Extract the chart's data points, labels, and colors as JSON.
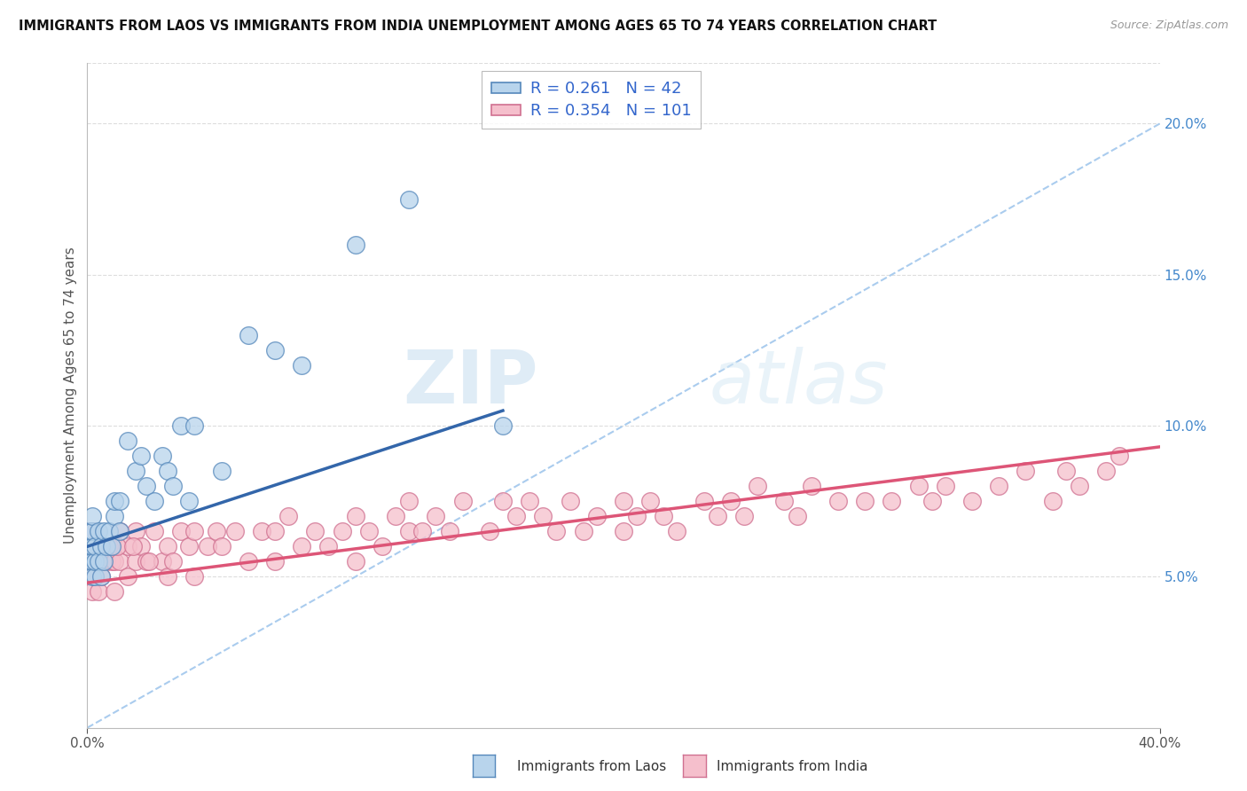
{
  "title": "IMMIGRANTS FROM LAOS VS IMMIGRANTS FROM INDIA UNEMPLOYMENT AMONG AGES 65 TO 74 YEARS CORRELATION CHART",
  "source": "Source: ZipAtlas.com",
  "ylabel": "Unemployment Among Ages 65 to 74 years",
  "xlim": [
    0.0,
    0.4
  ],
  "ylim": [
    0.0,
    0.22
  ],
  "xticks": [
    0.0,
    0.1,
    0.2,
    0.3,
    0.4
  ],
  "xticklabels": [
    "0.0%",
    "",
    "",
    "",
    "40.0%"
  ],
  "yticks": [
    0.05,
    0.1,
    0.15,
    0.2
  ],
  "yticklabels": [
    "5.0%",
    "10.0%",
    "15.0%",
    "20.0%"
  ],
  "laos_color": "#b8d4ec",
  "laos_edge_color": "#5588bb",
  "india_color": "#f5bfcc",
  "india_edge_color": "#d07090",
  "laos_line_color": "#3366aa",
  "india_line_color": "#dd5577",
  "diagonal_color": "#aaccee",
  "grid_color": "#dddddd",
  "laos_R": 0.261,
  "laos_N": 42,
  "india_R": 0.354,
  "india_N": 101,
  "laos_trend_x": [
    0.0,
    0.155
  ],
  "laos_trend_y": [
    0.06,
    0.105
  ],
  "india_trend_x": [
    0.0,
    0.4
  ],
  "india_trend_y": [
    0.048,
    0.093
  ],
  "laos_scatter_x": [
    0.001,
    0.001,
    0.001,
    0.002,
    0.002,
    0.002,
    0.002,
    0.002,
    0.003,
    0.003,
    0.003,
    0.004,
    0.004,
    0.005,
    0.005,
    0.006,
    0.006,
    0.007,
    0.008,
    0.009,
    0.01,
    0.01,
    0.012,
    0.012,
    0.015,
    0.018,
    0.02,
    0.022,
    0.025,
    0.028,
    0.03,
    0.032,
    0.035,
    0.038,
    0.04,
    0.05,
    0.06,
    0.07,
    0.08,
    0.1,
    0.12,
    0.155
  ],
  "laos_scatter_y": [
    0.055,
    0.06,
    0.065,
    0.05,
    0.055,
    0.06,
    0.065,
    0.07,
    0.05,
    0.055,
    0.06,
    0.055,
    0.065,
    0.05,
    0.06,
    0.055,
    0.065,
    0.06,
    0.065,
    0.06,
    0.07,
    0.075,
    0.065,
    0.075,
    0.095,
    0.085,
    0.09,
    0.08,
    0.075,
    0.09,
    0.085,
    0.08,
    0.1,
    0.075,
    0.1,
    0.085,
    0.13,
    0.125,
    0.12,
    0.16,
    0.175,
    0.1
  ],
  "india_scatter_x": [
    0.001,
    0.001,
    0.001,
    0.002,
    0.002,
    0.002,
    0.003,
    0.003,
    0.004,
    0.004,
    0.005,
    0.005,
    0.006,
    0.007,
    0.008,
    0.009,
    0.01,
    0.01,
    0.012,
    0.012,
    0.015,
    0.015,
    0.018,
    0.018,
    0.02,
    0.022,
    0.025,
    0.028,
    0.03,
    0.03,
    0.032,
    0.035,
    0.038,
    0.04,
    0.04,
    0.045,
    0.048,
    0.05,
    0.055,
    0.06,
    0.065,
    0.07,
    0.07,
    0.075,
    0.08,
    0.085,
    0.09,
    0.095,
    0.1,
    0.1,
    0.105,
    0.11,
    0.115,
    0.12,
    0.12,
    0.125,
    0.13,
    0.135,
    0.14,
    0.15,
    0.155,
    0.16,
    0.165,
    0.17,
    0.175,
    0.18,
    0.185,
    0.19,
    0.2,
    0.2,
    0.205,
    0.21,
    0.215,
    0.22,
    0.23,
    0.235,
    0.24,
    0.245,
    0.25,
    0.26,
    0.265,
    0.27,
    0.28,
    0.29,
    0.3,
    0.31,
    0.315,
    0.32,
    0.33,
    0.34,
    0.35,
    0.36,
    0.365,
    0.37,
    0.38,
    0.385,
    0.005,
    0.008,
    0.011,
    0.017,
    0.023
  ],
  "india_scatter_y": [
    0.055,
    0.06,
    0.065,
    0.045,
    0.055,
    0.065,
    0.05,
    0.06,
    0.045,
    0.06,
    0.05,
    0.06,
    0.055,
    0.055,
    0.06,
    0.055,
    0.045,
    0.055,
    0.055,
    0.065,
    0.05,
    0.06,
    0.055,
    0.065,
    0.06,
    0.055,
    0.065,
    0.055,
    0.05,
    0.06,
    0.055,
    0.065,
    0.06,
    0.05,
    0.065,
    0.06,
    0.065,
    0.06,
    0.065,
    0.055,
    0.065,
    0.055,
    0.065,
    0.07,
    0.06,
    0.065,
    0.06,
    0.065,
    0.055,
    0.07,
    0.065,
    0.06,
    0.07,
    0.065,
    0.075,
    0.065,
    0.07,
    0.065,
    0.075,
    0.065,
    0.075,
    0.07,
    0.075,
    0.07,
    0.065,
    0.075,
    0.065,
    0.07,
    0.065,
    0.075,
    0.07,
    0.075,
    0.07,
    0.065,
    0.075,
    0.07,
    0.075,
    0.07,
    0.08,
    0.075,
    0.07,
    0.08,
    0.075,
    0.075,
    0.075,
    0.08,
    0.075,
    0.08,
    0.075,
    0.08,
    0.085,
    0.075,
    0.085,
    0.08,
    0.085,
    0.09,
    0.06,
    0.06,
    0.06,
    0.06,
    0.055
  ]
}
